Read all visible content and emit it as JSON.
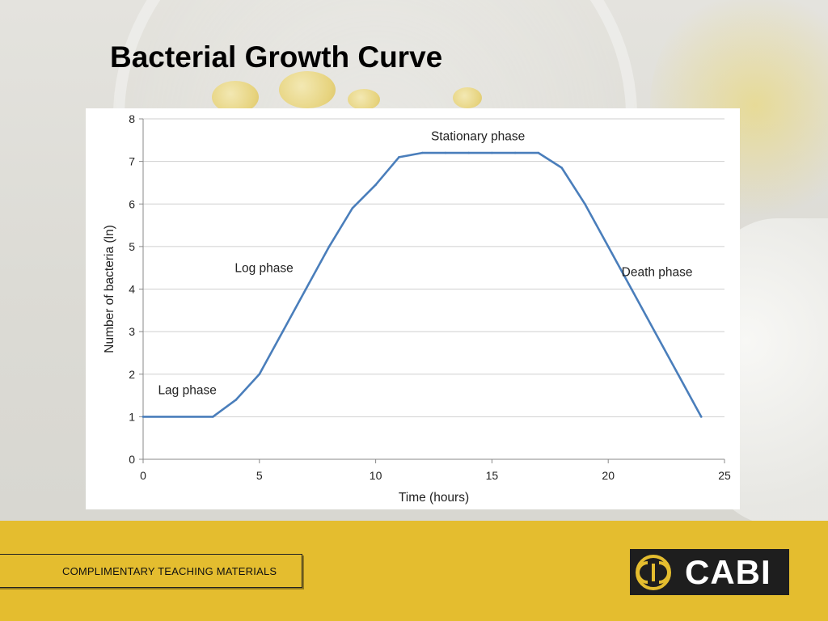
{
  "slide": {
    "title": "Bacterial Growth Curve",
    "footer_label": "COMPLIMENTARY TEACHING MATERIALS",
    "logo_text": "CABI",
    "logo_icon": "cabi-logo-icon",
    "colors": {
      "footer": "#e4bd2f",
      "line": "#4a7ebb",
      "grid": "#cfcfcf",
      "logo_bg": "#1e1e1e"
    }
  },
  "chart_data": {
    "type": "line",
    "title": "",
    "xlabel": "Time (hours)",
    "ylabel": "Number of bacteria (ln)",
    "xlim": [
      0,
      25
    ],
    "ylim": [
      0,
      8
    ],
    "xticks": [
      0,
      5,
      10,
      15,
      20,
      25
    ],
    "yticks": [
      0,
      1,
      2,
      3,
      4,
      5,
      6,
      7,
      8
    ],
    "grid": "horizontal",
    "series": [
      {
        "points": [
          {
            "x": 0,
            "y": 1
          },
          {
            "x": 3,
            "y": 1
          },
          {
            "x": 4,
            "y": 1.4
          },
          {
            "x": 5,
            "y": 2
          },
          {
            "x": 6,
            "y": 3
          },
          {
            "x": 7,
            "y": 4
          },
          {
            "x": 8,
            "y": 5
          },
          {
            "x": 9,
            "y": 5.9
          },
          {
            "x": 10,
            "y": 6.45
          },
          {
            "x": 11,
            "y": 7.1
          },
          {
            "x": 12,
            "y": 7.2
          },
          {
            "x": 13,
            "y": 7.2
          },
          {
            "x": 14,
            "y": 7.2
          },
          {
            "x": 15,
            "y": 7.2
          },
          {
            "x": 16,
            "y": 7.2
          },
          {
            "x": 17,
            "y": 7.2
          },
          {
            "x": 18,
            "y": 6.85
          },
          {
            "x": 19,
            "y": 6
          },
          {
            "x": 20,
            "y": 5
          },
          {
            "x": 21,
            "y": 4
          },
          {
            "x": 22,
            "y": 3
          },
          {
            "x": 23,
            "y": 2
          },
          {
            "x": 24,
            "y": 1
          }
        ]
      }
    ],
    "annotations": [
      {
        "name": "lag",
        "text": "Lag phase",
        "x": 1.9,
        "y": 1.53
      },
      {
        "name": "log",
        "text": "Log phase",
        "x": 5.2,
        "y": 4.4
      },
      {
        "name": "stationary",
        "text": "Stationary phase",
        "x": 14.4,
        "y": 7.5
      },
      {
        "name": "death",
        "text": "Death phase",
        "x": 22.1,
        "y": 4.3
      }
    ]
  }
}
